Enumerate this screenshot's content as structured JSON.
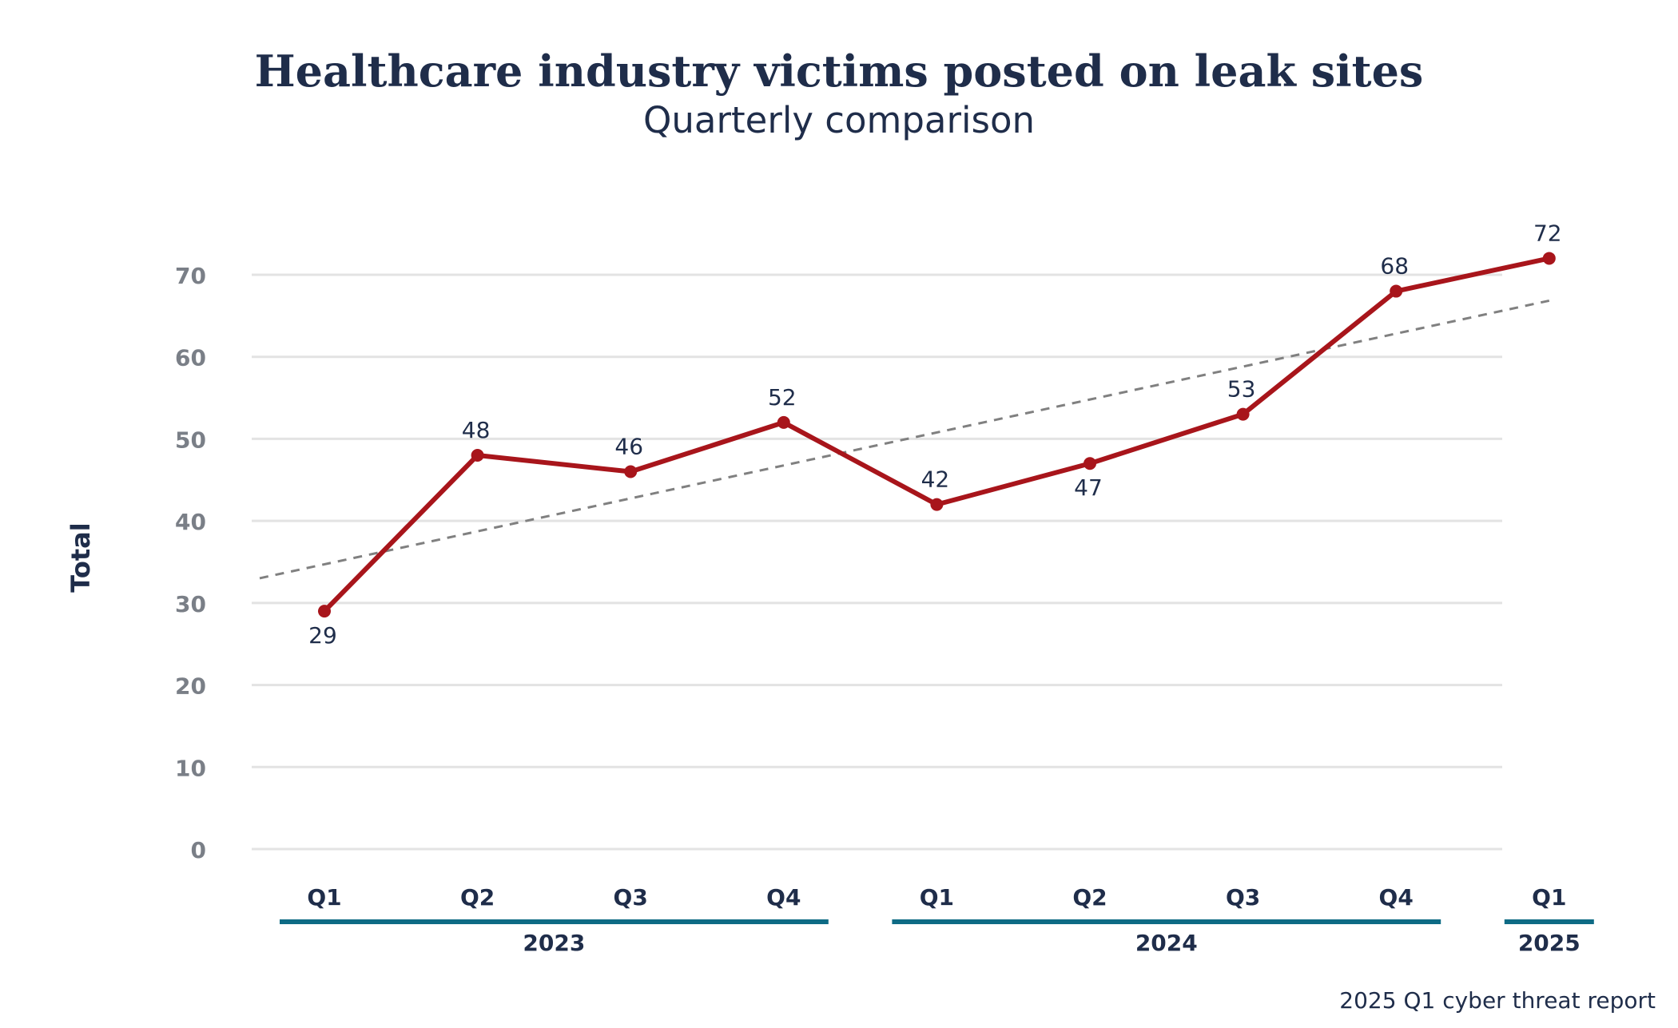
{
  "chart_data": {
    "type": "line",
    "title": "Healthcare industry victims posted on leak sites",
    "subtitle": "Quarterly comparison",
    "ylabel": "Total",
    "ylim": [
      0,
      70
    ],
    "yticks": [
      0,
      10,
      20,
      30,
      40,
      50,
      60,
      70
    ],
    "categories": [
      "Q1",
      "Q2",
      "Q3",
      "Q4",
      "Q1",
      "Q2",
      "Q3",
      "Q4",
      "Q1"
    ],
    "groups": [
      {
        "label": "2023",
        "start": 0,
        "end": 3
      },
      {
        "label": "2024",
        "start": 4,
        "end": 7
      },
      {
        "label": "2025",
        "start": 8,
        "end": 8
      }
    ],
    "series": [
      {
        "values": [
          29,
          48,
          46,
          52,
          42,
          47,
          53,
          68,
          72
        ],
        "color": "#a8151b",
        "label_below": [
          true,
          false,
          false,
          false,
          false,
          true,
          false,
          false,
          false
        ]
      }
    ],
    "trendline": {
      "style": "dashed",
      "color": "#808080"
    },
    "grid": true,
    "group_bar_color": "#0e6b85",
    "source_note": "2025 Q1 cyber threat report"
  }
}
